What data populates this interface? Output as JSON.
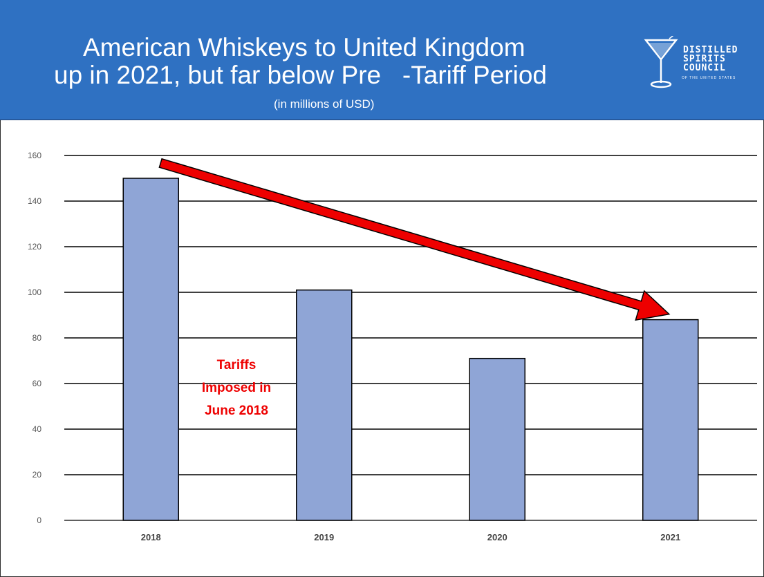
{
  "header": {
    "title_line1": "American Whiskeys to United Kingdom",
    "title_line2": "up in 2021, but far below Pre   -Tariff Period",
    "subtitle": "(in millions of USD)"
  },
  "logo": {
    "line1": "DISTILLED",
    "line2": "SPIRITS",
    "line3": "COUNCIL",
    "line4": "OF THE UNITED STATES"
  },
  "annotation": {
    "lines": [
      "Tariffs",
      "Imposed in",
      "June 2018"
    ]
  },
  "colors": {
    "header_bg": "#2f71c2",
    "bar_fill": "#8fa5d6",
    "arrow": "#ee0000",
    "annotation": "#ee0000"
  },
  "chart_data": {
    "type": "bar",
    "categories": [
      "2018",
      "2019",
      "2020",
      "2021"
    ],
    "values": [
      150,
      101,
      71,
      88
    ],
    "ylim": [
      0,
      160
    ],
    "yticks": [
      0,
      20,
      40,
      60,
      80,
      100,
      120,
      140,
      160
    ],
    "grid": true,
    "trend_arrow": {
      "from_category": "2018",
      "to_category": "2021"
    }
  }
}
